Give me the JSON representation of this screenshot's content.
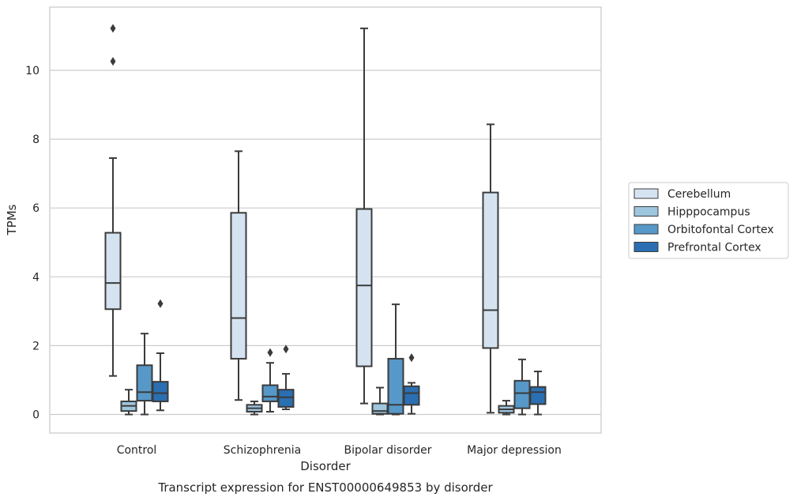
{
  "chart_data": {
    "type": "box",
    "title": "",
    "caption": "Transcript expression for ENST00000649853 by disorder",
    "xlabel": "Disorder",
    "ylabel": "TPMs",
    "categories": [
      "Control",
      "Schizophrenia",
      "Bipolar disorder",
      "Major depression"
    ],
    "ylim": [
      -0.55,
      11.8
    ],
    "yticks": [
      0,
      2,
      4,
      6,
      8,
      10
    ],
    "grid": "horizontal",
    "legend_position": "right",
    "series": [
      {
        "name": "Cerebellum",
        "color": "#d5e3f1",
        "boxes": [
          {
            "whislo": 1.12,
            "q1": 3.06,
            "med": 3.82,
            "q3": 5.28,
            "whishi": 7.45,
            "fliers": [
              10.26,
              11.22
            ]
          },
          {
            "whislo": 0.42,
            "q1": 1.62,
            "med": 2.8,
            "q3": 5.86,
            "whishi": 7.65,
            "fliers": []
          },
          {
            "whislo": 0.32,
            "q1": 1.4,
            "med": 3.75,
            "q3": 5.97,
            "whishi": 11.22,
            "fliers": []
          },
          {
            "whislo": 0.05,
            "q1": 1.93,
            "med": 3.03,
            "q3": 6.45,
            "whishi": 8.43,
            "fliers": []
          }
        ]
      },
      {
        "name": "Hipppocampus",
        "color": "#9ec6df",
        "boxes": [
          {
            "whislo": 0.0,
            "q1": 0.1,
            "med": 0.25,
            "q3": 0.38,
            "whishi": 0.72,
            "fliers": []
          },
          {
            "whislo": 0.0,
            "q1": 0.08,
            "med": 0.18,
            "q3": 0.28,
            "whishi": 0.38,
            "fliers": []
          },
          {
            "whislo": 0.0,
            "q1": 0.02,
            "med": 0.1,
            "q3": 0.32,
            "whishi": 0.78,
            "fliers": []
          },
          {
            "whislo": 0.0,
            "q1": 0.05,
            "med": 0.15,
            "q3": 0.25,
            "whishi": 0.4,
            "fliers": []
          }
        ]
      },
      {
        "name": "Orbitofontal Cortex",
        "color": "#5698c8",
        "boxes": [
          {
            "whislo": 0.0,
            "q1": 0.4,
            "med": 0.65,
            "q3": 1.43,
            "whishi": 2.35,
            "fliers": []
          },
          {
            "whislo": 0.08,
            "q1": 0.38,
            "med": 0.52,
            "q3": 0.85,
            "whishi": 1.5,
            "fliers": [
              1.8
            ]
          },
          {
            "whislo": 0.0,
            "q1": 0.02,
            "med": 0.28,
            "q3": 1.62,
            "whishi": 3.2,
            "fliers": []
          },
          {
            "whislo": 0.0,
            "q1": 0.18,
            "med": 0.62,
            "q3": 0.98,
            "whishi": 1.6,
            "fliers": []
          }
        ]
      },
      {
        "name": "Prefrontal Cortex",
        "color": "#2a6fb2",
        "boxes": [
          {
            "whislo": 0.12,
            "q1": 0.38,
            "med": 0.62,
            "q3": 0.95,
            "whishi": 1.78,
            "fliers": [
              3.22
            ]
          },
          {
            "whislo": 0.15,
            "q1": 0.22,
            "med": 0.5,
            "q3": 0.72,
            "whishi": 1.18,
            "fliers": [
              1.9
            ]
          },
          {
            "whislo": 0.02,
            "q1": 0.28,
            "med": 0.62,
            "q3": 0.82,
            "whishi": 0.92,
            "fliers": [
              1.65
            ]
          },
          {
            "whislo": 0.0,
            "q1": 0.3,
            "med": 0.65,
            "q3": 0.8,
            "whishi": 1.25,
            "fliers": []
          }
        ]
      }
    ]
  }
}
